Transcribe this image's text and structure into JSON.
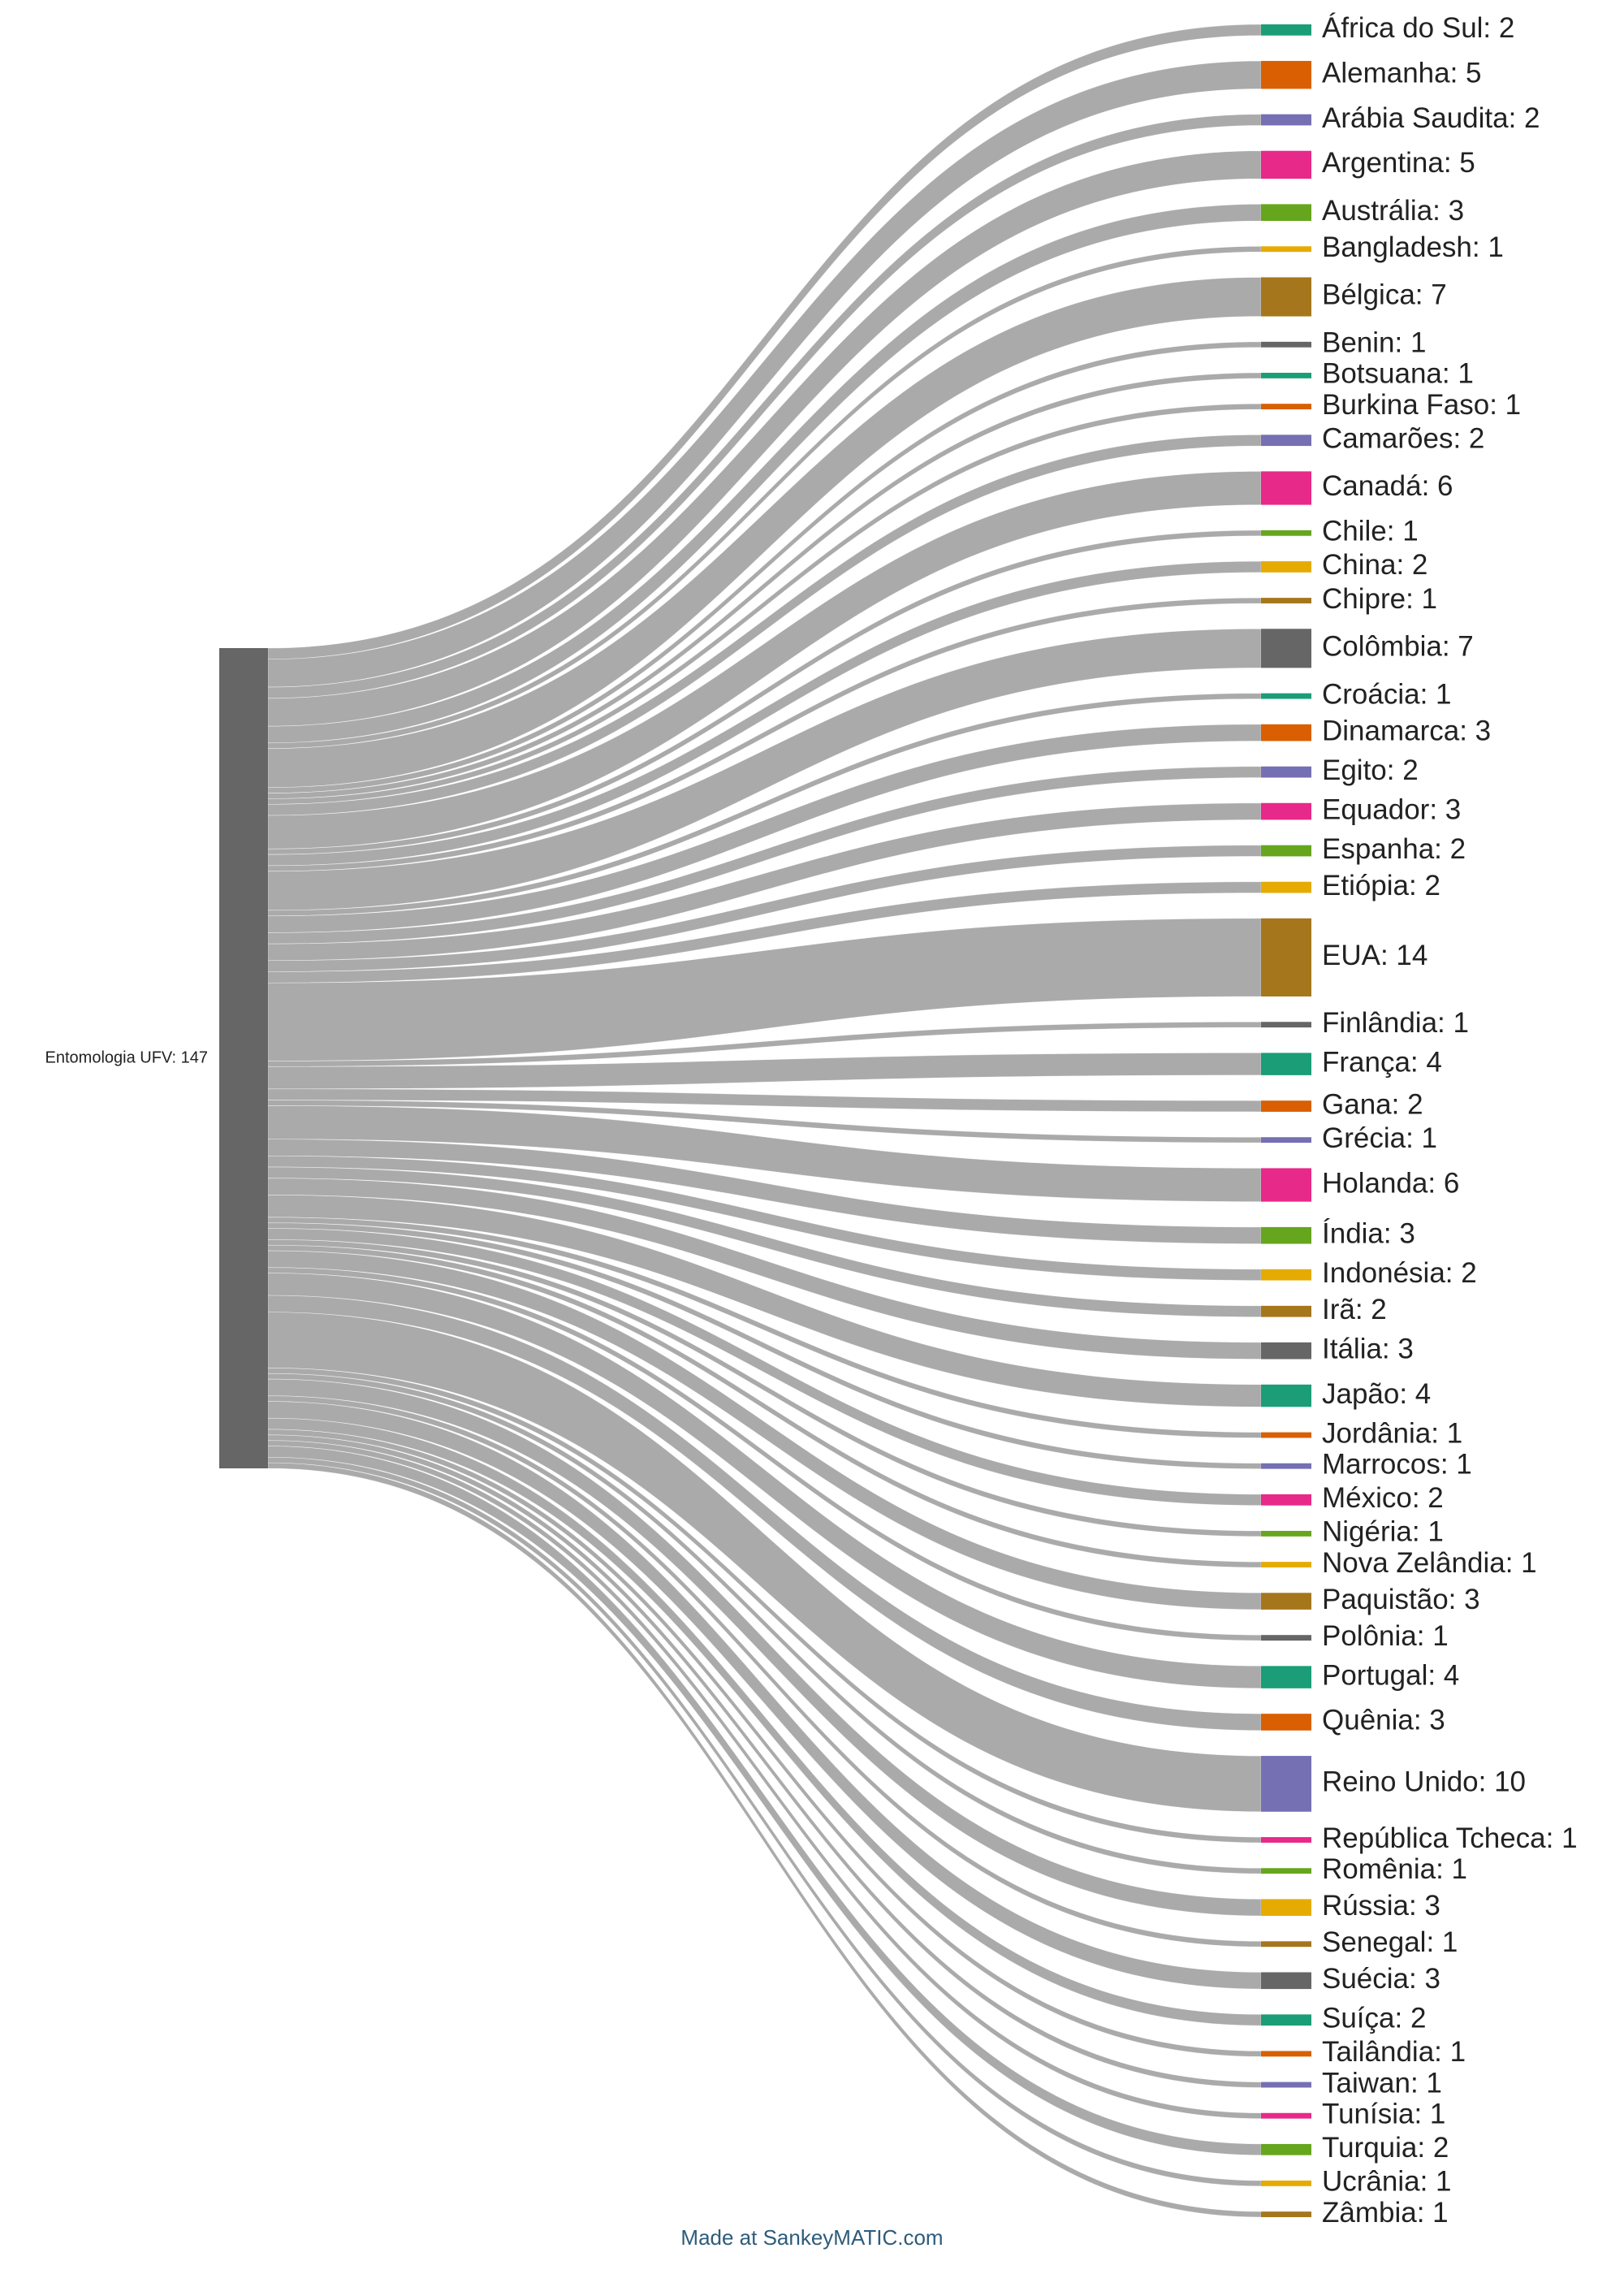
{
  "chart_data": {
    "type": "sankey",
    "source": {
      "name": "Entomologia UFV",
      "value": 147,
      "color": "#666666"
    },
    "link_color": "#aaaaaa",
    "palette": [
      "#1b9e77",
      "#d95f02",
      "#7570b3",
      "#e7298a",
      "#66a61e",
      "#e6ab02",
      "#a6761d",
      "#666666"
    ],
    "targets": [
      {
        "name": "África do Sul",
        "value": 2
      },
      {
        "name": "Alemanha",
        "value": 5
      },
      {
        "name": "Arábia Saudita",
        "value": 2
      },
      {
        "name": "Argentina",
        "value": 5
      },
      {
        "name": "Austrália",
        "value": 3
      },
      {
        "name": "Bangladesh",
        "value": 1
      },
      {
        "name": "Bélgica",
        "value": 7
      },
      {
        "name": "Benin",
        "value": 1
      },
      {
        "name": "Botsuana",
        "value": 1
      },
      {
        "name": "Burkina Faso",
        "value": 1
      },
      {
        "name": "Camarões",
        "value": 2
      },
      {
        "name": "Canadá",
        "value": 6
      },
      {
        "name": "Chile",
        "value": 1
      },
      {
        "name": "China",
        "value": 2
      },
      {
        "name": "Chipre",
        "value": 1
      },
      {
        "name": "Colômbia",
        "value": 7
      },
      {
        "name": "Croácia",
        "value": 1
      },
      {
        "name": "Dinamarca",
        "value": 3
      },
      {
        "name": "Egito",
        "value": 2
      },
      {
        "name": "Equador",
        "value": 3
      },
      {
        "name": "Espanha",
        "value": 2
      },
      {
        "name": "Etiópia",
        "value": 2
      },
      {
        "name": "EUA",
        "value": 14
      },
      {
        "name": "Finlândia",
        "value": 1
      },
      {
        "name": "França",
        "value": 4
      },
      {
        "name": "Gana",
        "value": 2
      },
      {
        "name": "Grécia",
        "value": 1
      },
      {
        "name": "Holanda",
        "value": 6
      },
      {
        "name": "Índia",
        "value": 3
      },
      {
        "name": "Indonésia",
        "value": 2
      },
      {
        "name": "Irã",
        "value": 2
      },
      {
        "name": "Itália",
        "value": 3
      },
      {
        "name": "Japão",
        "value": 4
      },
      {
        "name": "Jordânia",
        "value": 1
      },
      {
        "name": "Marrocos",
        "value": 1
      },
      {
        "name": "México",
        "value": 2
      },
      {
        "name": "Nigéria",
        "value": 1
      },
      {
        "name": "Nova Zelândia",
        "value": 1
      },
      {
        "name": "Paquistão",
        "value": 3
      },
      {
        "name": "Polônia",
        "value": 1
      },
      {
        "name": "Portugal",
        "value": 4
      },
      {
        "name": "Quênia",
        "value": 3
      },
      {
        "name": "Reino Unido",
        "value": 10
      },
      {
        "name": "República Tcheca",
        "value": 1
      },
      {
        "name": "Romênia",
        "value": 1
      },
      {
        "name": "Rússia",
        "value": 3
      },
      {
        "name": "Senegal",
        "value": 1
      },
      {
        "name": "Suécia",
        "value": 3
      },
      {
        "name": "Suíça",
        "value": 2
      },
      {
        "name": "Tailândia",
        "value": 1
      },
      {
        "name": "Taiwan",
        "value": 1
      },
      {
        "name": "Tunísia",
        "value": 1
      },
      {
        "name": "Turquia",
        "value": 2
      },
      {
        "name": "Ucrânia",
        "value": 1
      },
      {
        "name": "Zâmbia",
        "value": 1
      }
    ]
  },
  "footer": {
    "credit": "Made at SankeyMATIC.com"
  }
}
